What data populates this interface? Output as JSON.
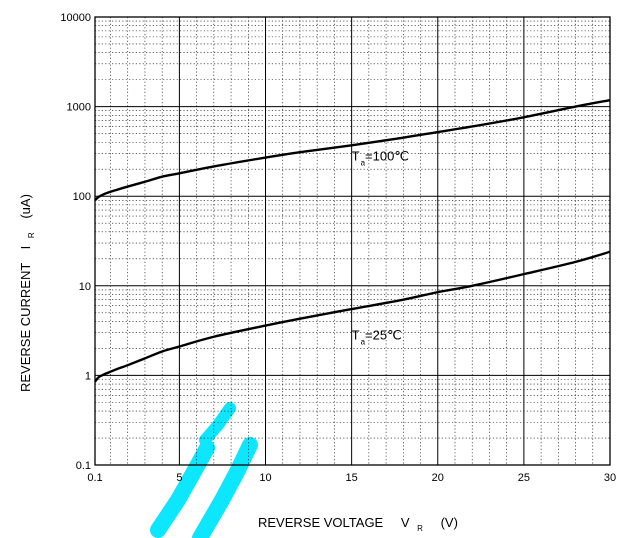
{
  "chart_data": {
    "type": "line",
    "title": "",
    "xlabel": "REVERSE VOLTAGE",
    "xlabel_symbol": "V",
    "xlabel_subscript": "R",
    "xlabel_unit": "(V)",
    "ylabel": "REVERSE CURRENT",
    "ylabel_symbol": "I",
    "ylabel_subscript": "R",
    "ylabel_unit": "(uA)",
    "xlim": [
      0.1,
      30
    ],
    "ylim": [
      0.1,
      10000
    ],
    "yscale": "log",
    "grid": true,
    "x_ticks": [
      0.1,
      5,
      10,
      15,
      20,
      25,
      30
    ],
    "x_tick_labels": [
      "0.1",
      "5",
      "10",
      "15",
      "20",
      "25",
      "30"
    ],
    "y_ticks": [
      0.1,
      1,
      10,
      100,
      1000,
      10000
    ],
    "y_tick_labels": [
      "0.1",
      "1",
      "10",
      "100",
      "1000",
      "10000"
    ],
    "series": [
      {
        "name": "Ta=100℃",
        "label_main": "T",
        "label_sub": "a",
        "label_rest": "=100℃",
        "label_at": [
          15,
          250
        ],
        "color": "#000000",
        "x": [
          0.1,
          0.3,
          0.6,
          1,
          1.5,
          2,
          3,
          4,
          5,
          7,
          10,
          12,
          15,
          18,
          20,
          22,
          25,
          28,
          30
        ],
        "y": [
          90,
          98,
          105,
          112,
          120,
          128,
          145,
          165,
          180,
          215,
          270,
          310,
          370,
          450,
          520,
          600,
          760,
          1000,
          1180
        ]
      },
      {
        "name": "Ta=25℃",
        "label_main": "T",
        "label_sub": "a",
        "label_rest": "=25℃",
        "label_at": [
          15,
          2.5
        ],
        "color": "#000000",
        "x": [
          0.1,
          0.3,
          0.6,
          1,
          1.5,
          2,
          3,
          4,
          5,
          7,
          10,
          12,
          15,
          18,
          20,
          22,
          25,
          28,
          30
        ],
        "y": [
          0.85,
          0.95,
          1.02,
          1.1,
          1.2,
          1.3,
          1.55,
          1.85,
          2.1,
          2.7,
          3.6,
          4.3,
          5.5,
          7.0,
          8.5,
          10.0,
          13.5,
          18.5,
          24
        ]
      }
    ]
  },
  "watermark_color": "#00e5ff"
}
